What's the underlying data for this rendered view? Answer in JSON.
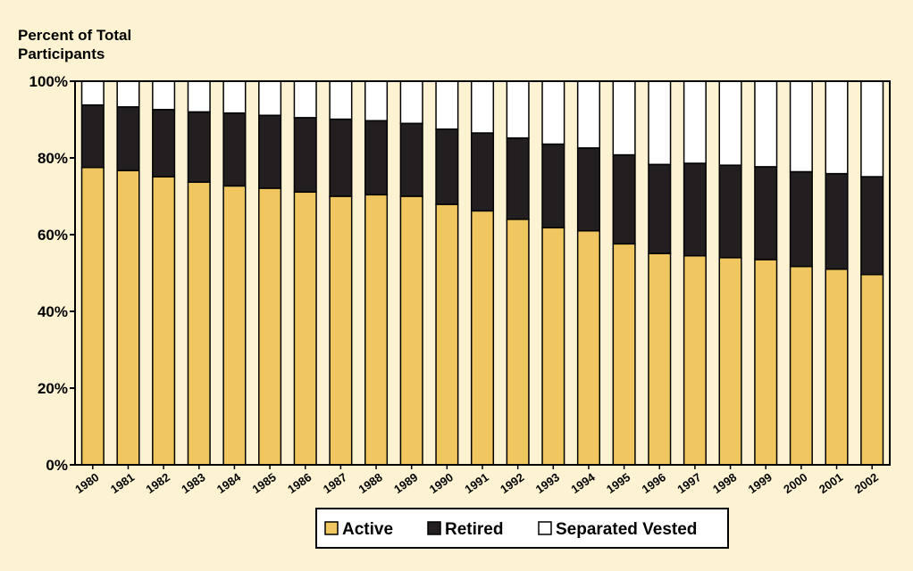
{
  "chart_data": {
    "type": "bar",
    "stacked": true,
    "ylabel_lines": [
      "Percent of Total",
      "Participants"
    ],
    "ylim": [
      0,
      100
    ],
    "yticks": [
      "0%",
      "20%",
      "40%",
      "60%",
      "80%",
      "100%"
    ],
    "ytick_values": [
      0,
      20,
      40,
      60,
      80,
      100
    ],
    "categories": [
      "1980",
      "1981",
      "1982",
      "1983",
      "1984",
      "1985",
      "1986",
      "1987",
      "1988",
      "1989",
      "1990",
      "1991",
      "1992",
      "1993",
      "1994",
      "1995",
      "1996",
      "1997",
      "1998",
      "1999",
      "2000",
      "2001",
      "2002"
    ],
    "series": [
      {
        "name": "Active",
        "color": "#f0c660",
        "values": [
          77.5,
          76.7,
          75.1,
          73.7,
          72.7,
          72.1,
          71.1,
          70.0,
          70.4,
          70.0,
          67.9,
          66.2,
          64.0,
          61.8,
          61.0,
          57.6,
          55.1,
          54.5,
          54.0,
          53.5,
          51.7,
          51.0,
          49.6
        ]
      },
      {
        "name": "Retired",
        "color": "#231f20",
        "values": [
          16.3,
          16.6,
          17.5,
          18.3,
          19.0,
          19.0,
          19.4,
          20.1,
          19.3,
          19.0,
          19.6,
          20.3,
          21.2,
          21.8,
          21.6,
          23.2,
          23.2,
          24.1,
          24.1,
          24.2,
          24.7,
          24.9,
          25.5
        ]
      },
      {
        "name": "Separated Vested",
        "color": "#ffffff",
        "values": [
          6.2,
          6.7,
          7.4,
          8.0,
          8.3,
          8.9,
          9.5,
          9.9,
          10.3,
          11.0,
          12.5,
          13.5,
          14.8,
          16.4,
          17.4,
          19.2,
          21.7,
          21.4,
          21.9,
          22.3,
          23.6,
          24.1,
          24.9
        ]
      }
    ],
    "legend_position": "bottom-center",
    "grid": false
  },
  "colors": {
    "background": "#fdf3d2",
    "axis": "#000000"
  }
}
